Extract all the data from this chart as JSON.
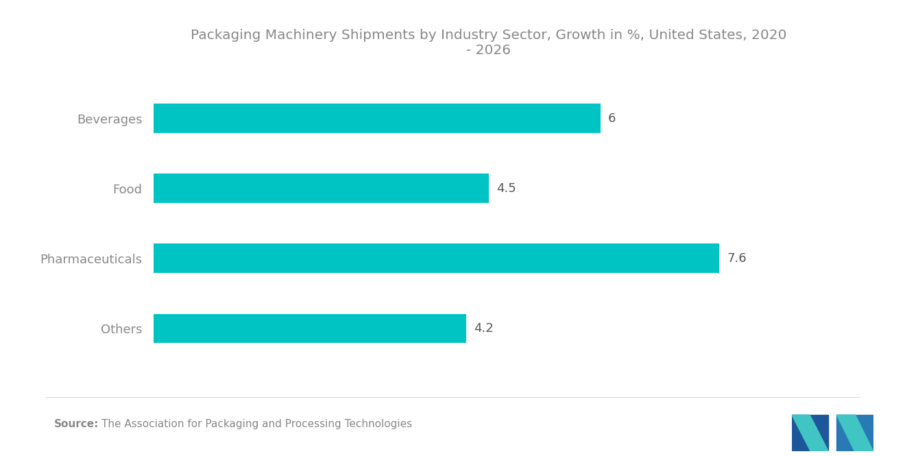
{
  "title": "Packaging Machinery Shipments by Industry Sector, Growth in %, United States, 2020\n- 2026",
  "categories": [
    "Beverages",
    "Food",
    "Pharmaceuticals",
    "Others"
  ],
  "values": [
    6.0,
    4.5,
    7.6,
    4.2
  ],
  "bar_color": "#00C4C4",
  "background_color": "#ffffff",
  "value_labels": [
    "6",
    "4.5",
    "7.6",
    "4.2"
  ],
  "source_text": "The Association for Packaging and Processing Technologies",
  "source_label": "Source:",
  "xlim": [
    0,
    9
  ],
  "title_fontsize": 14.5,
  "label_fontsize": 13,
  "value_fontsize": 13,
  "source_fontsize": 11,
  "bar_height": 0.42,
  "title_color": "#888888",
  "label_color": "#888888",
  "value_color": "#555555",
  "source_color": "#888888",
  "logo_left_color": "#1a5276",
  "logo_right_color": "#2e86c1",
  "logo_accent_color": "#48c9b0"
}
